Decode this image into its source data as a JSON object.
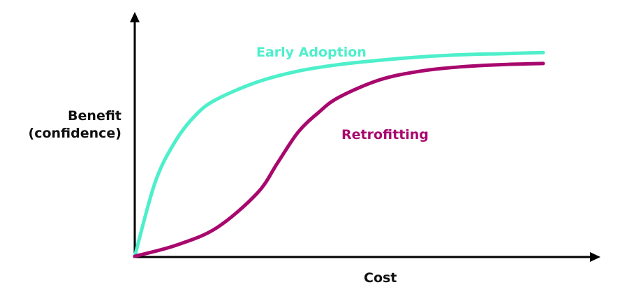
{
  "chart_data": {
    "type": "line",
    "title": "",
    "xlabel": "Cost",
    "ylabel": "Benefit\n(confidence)",
    "ylabel_lines": [
      "Benefit",
      "(confidence)"
    ],
    "axis_ticks": "none",
    "grid": false,
    "legend": "inline labels",
    "xlim": [
      0,
      1
    ],
    "ylim": [
      0,
      1
    ],
    "series": [
      {
        "name": "Early Adoption",
        "color": "#4EEFCB",
        "x": [
          0,
          0.05,
          0.1,
          0.15,
          0.2,
          0.3,
          0.4,
          0.5,
          0.6,
          0.7,
          0.8,
          0.9,
          1.0
        ],
        "y": [
          0,
          0.34,
          0.53,
          0.65,
          0.72,
          0.8,
          0.85,
          0.88,
          0.9,
          0.915,
          0.925,
          0.93,
          0.935
        ]
      },
      {
        "name": "Retrofitting",
        "color": "#A8086E",
        "x": [
          0,
          0.1,
          0.2,
          0.3,
          0.35,
          0.4,
          0.45,
          0.5,
          0.6,
          0.7,
          0.8,
          0.9,
          1.0
        ],
        "y": [
          0,
          0.05,
          0.13,
          0.29,
          0.43,
          0.57,
          0.66,
          0.73,
          0.81,
          0.85,
          0.87,
          0.88,
          0.885
        ]
      }
    ]
  },
  "labels": {
    "y_axis": [
      "Benefit",
      "(confidence)"
    ],
    "x_axis": "Cost",
    "early": "Early Adoption",
    "retro": "Retrofitting"
  },
  "colors": {
    "axis": "#000000",
    "early": "#4EEFCB",
    "retro": "#A8086E"
  }
}
